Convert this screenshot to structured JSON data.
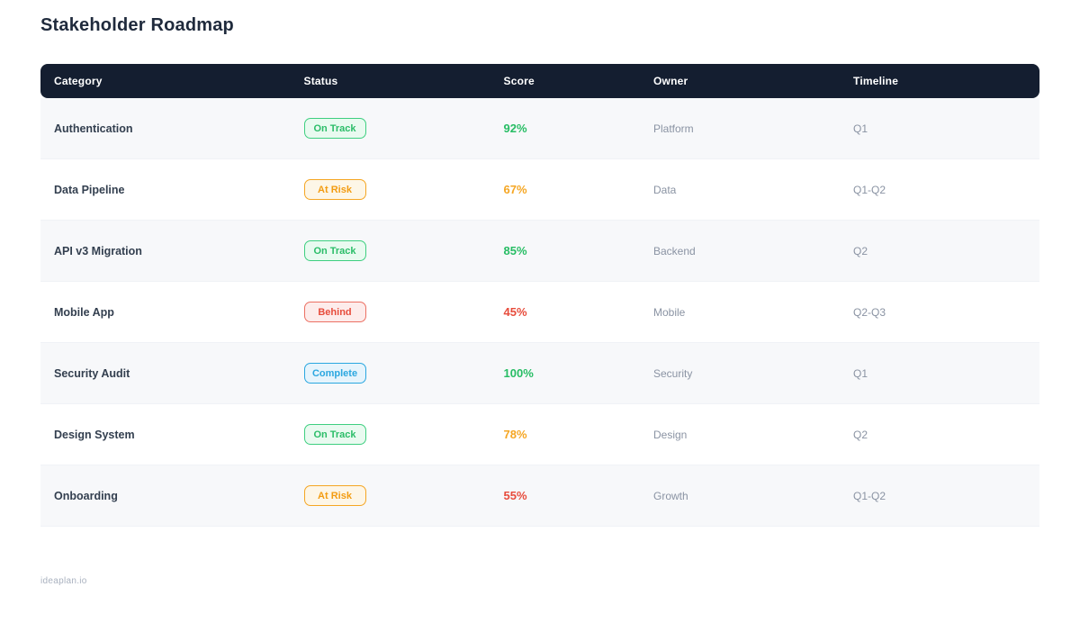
{
  "page": {
    "title": "Stakeholder Roadmap",
    "footer": "ideaplan.io"
  },
  "table": {
    "columns": [
      "Category",
      "Status",
      "Score",
      "Owner",
      "Timeline"
    ],
    "rows": [
      {
        "category": "Authentication",
        "status": "On Track",
        "status_variant": "on-track",
        "score": "92%",
        "score_tone": "green",
        "owner": "Platform",
        "timeline": "Q1"
      },
      {
        "category": "Data Pipeline",
        "status": "At Risk",
        "status_variant": "at-risk",
        "score": "67%",
        "score_tone": "orange",
        "owner": "Data",
        "timeline": "Q1-Q2"
      },
      {
        "category": "API v3 Migration",
        "status": "On Track",
        "status_variant": "on-track",
        "score": "85%",
        "score_tone": "green",
        "owner": "Backend",
        "timeline": "Q2"
      },
      {
        "category": "Mobile App",
        "status": "Behind",
        "status_variant": "behind",
        "score": "45%",
        "score_tone": "red",
        "owner": "Mobile",
        "timeline": "Q2-Q3"
      },
      {
        "category": "Security Audit",
        "status": "Complete",
        "status_variant": "complete",
        "score": "100%",
        "score_tone": "green",
        "owner": "Security",
        "timeline": "Q1"
      },
      {
        "category": "Design System",
        "status": "On Track",
        "status_variant": "on-track",
        "score": "78%",
        "score_tone": "orange",
        "owner": "Design",
        "timeline": "Q2"
      },
      {
        "category": "Onboarding",
        "status": "At Risk",
        "status_variant": "at-risk",
        "score": "55%",
        "score_tone": "red",
        "owner": "Growth",
        "timeline": "Q1-Q2"
      }
    ]
  },
  "colors": {
    "header_bg": "#141e30",
    "status_green": "#2bbd68",
    "status_orange": "#f5a623",
    "status_red": "#e74c3c",
    "status_blue": "#2aa7e0",
    "row_alt_bg": "#f7f8fa"
  }
}
